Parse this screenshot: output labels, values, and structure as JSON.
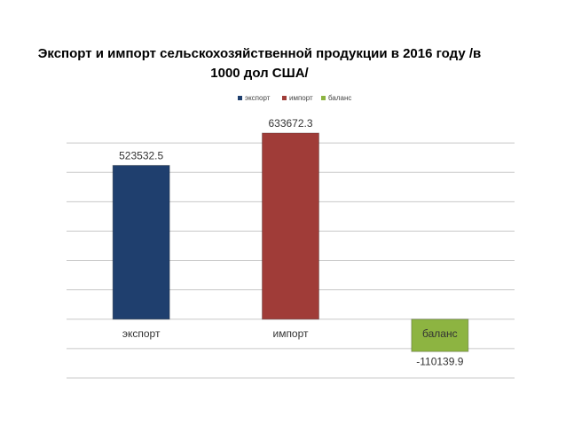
{
  "chart_data": {
    "type": "bar",
    "title": "Экспорт и импорт сельскохозяйственной продукции в 2016 году /в 1000 дол США/",
    "categories": [
      "экспорт",
      "импорт",
      "баланс"
    ],
    "values": [
      523532.5,
      633672.3,
      -110139.9
    ],
    "colors": [
      "#1f3f6e",
      "#a03c38",
      "#8db441"
    ],
    "ylim": [
      -200000,
      700000
    ],
    "yticks": [
      -200000,
      -100000,
      0,
      100000,
      200000,
      300000,
      400000,
      500000,
      600000
    ],
    "grid": true
  }
}
